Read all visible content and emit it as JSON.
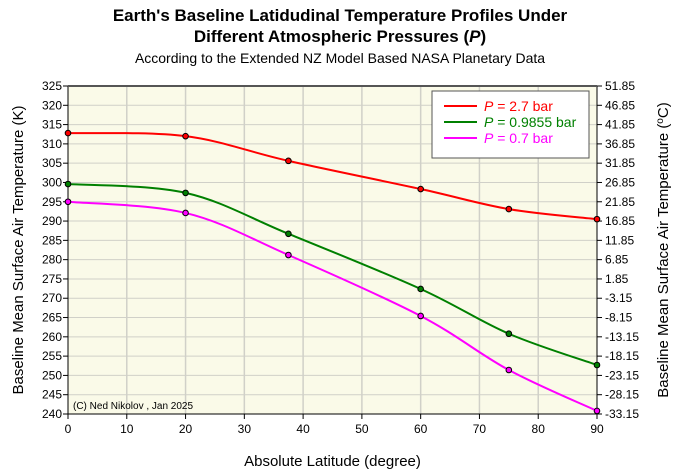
{
  "chart_data": {
    "type": "line",
    "title_line1": "Earth's Baseline Latidudinal Temperature Profiles Under",
    "title_line2_prefix": "Different Atmospheric Pressures (",
    "title_line2_var": "P",
    "title_line2_suffix": ")",
    "subtitle": "According to the Extended NZ Model Based NASA Planetary Data",
    "xlabel": "Absolute Latitude (degree)",
    "ylabel": "Baseline Mean Surface Air Temperature (K)",
    "y2label_prefix": "Baseline Mean Surface Air Temperature (",
    "y2label_sup": "o",
    "y2label_suffix": "C)",
    "xlim": [
      0,
      90
    ],
    "ylim": [
      240,
      325
    ],
    "xticks": [
      "0",
      "10",
      "20",
      "30",
      "40",
      "50",
      "60",
      "70",
      "80",
      "90"
    ],
    "yticks": [
      "240",
      "245",
      "250",
      "255",
      "260",
      "265",
      "270",
      "275",
      "280",
      "285",
      "290",
      "295",
      "300",
      "305",
      "310",
      "315",
      "320",
      "325"
    ],
    "y2ticks": [
      "-33.15",
      "-28.15",
      "-23.15",
      "-18.15",
      "-13.15",
      "-8.15",
      "-3.15",
      "1.85",
      "6.85",
      "11.85",
      "16.85",
      "21.85",
      "26.85",
      "31.85",
      "36.85",
      "41.85",
      "46.85",
      "51.85"
    ],
    "grid": true,
    "legend_position": "top-right",
    "annotation": "(C) Ned Nikolov , Jan 2025",
    "x": [
      0,
      20,
      37.5,
      60,
      75,
      90
    ],
    "series": [
      {
        "name_var": "P",
        "name_rest": " = 2.7 bar",
        "color": "#ff0000",
        "values": [
          312.8,
          312.0,
          305.6,
          298.3,
          293.1,
          290.5
        ]
      },
      {
        "name_var": "P",
        "name_rest": " = 0.9855 bar",
        "color": "#008000",
        "values": [
          299.6,
          297.3,
          286.7,
          272.4,
          260.8,
          252.7
        ]
      },
      {
        "name_var": "P",
        "name_rest": " = 0.7 bar",
        "color": "#ff00ff",
        "values": [
          295.0,
          292.1,
          281.2,
          265.4,
          251.4,
          240.8
        ]
      }
    ]
  }
}
